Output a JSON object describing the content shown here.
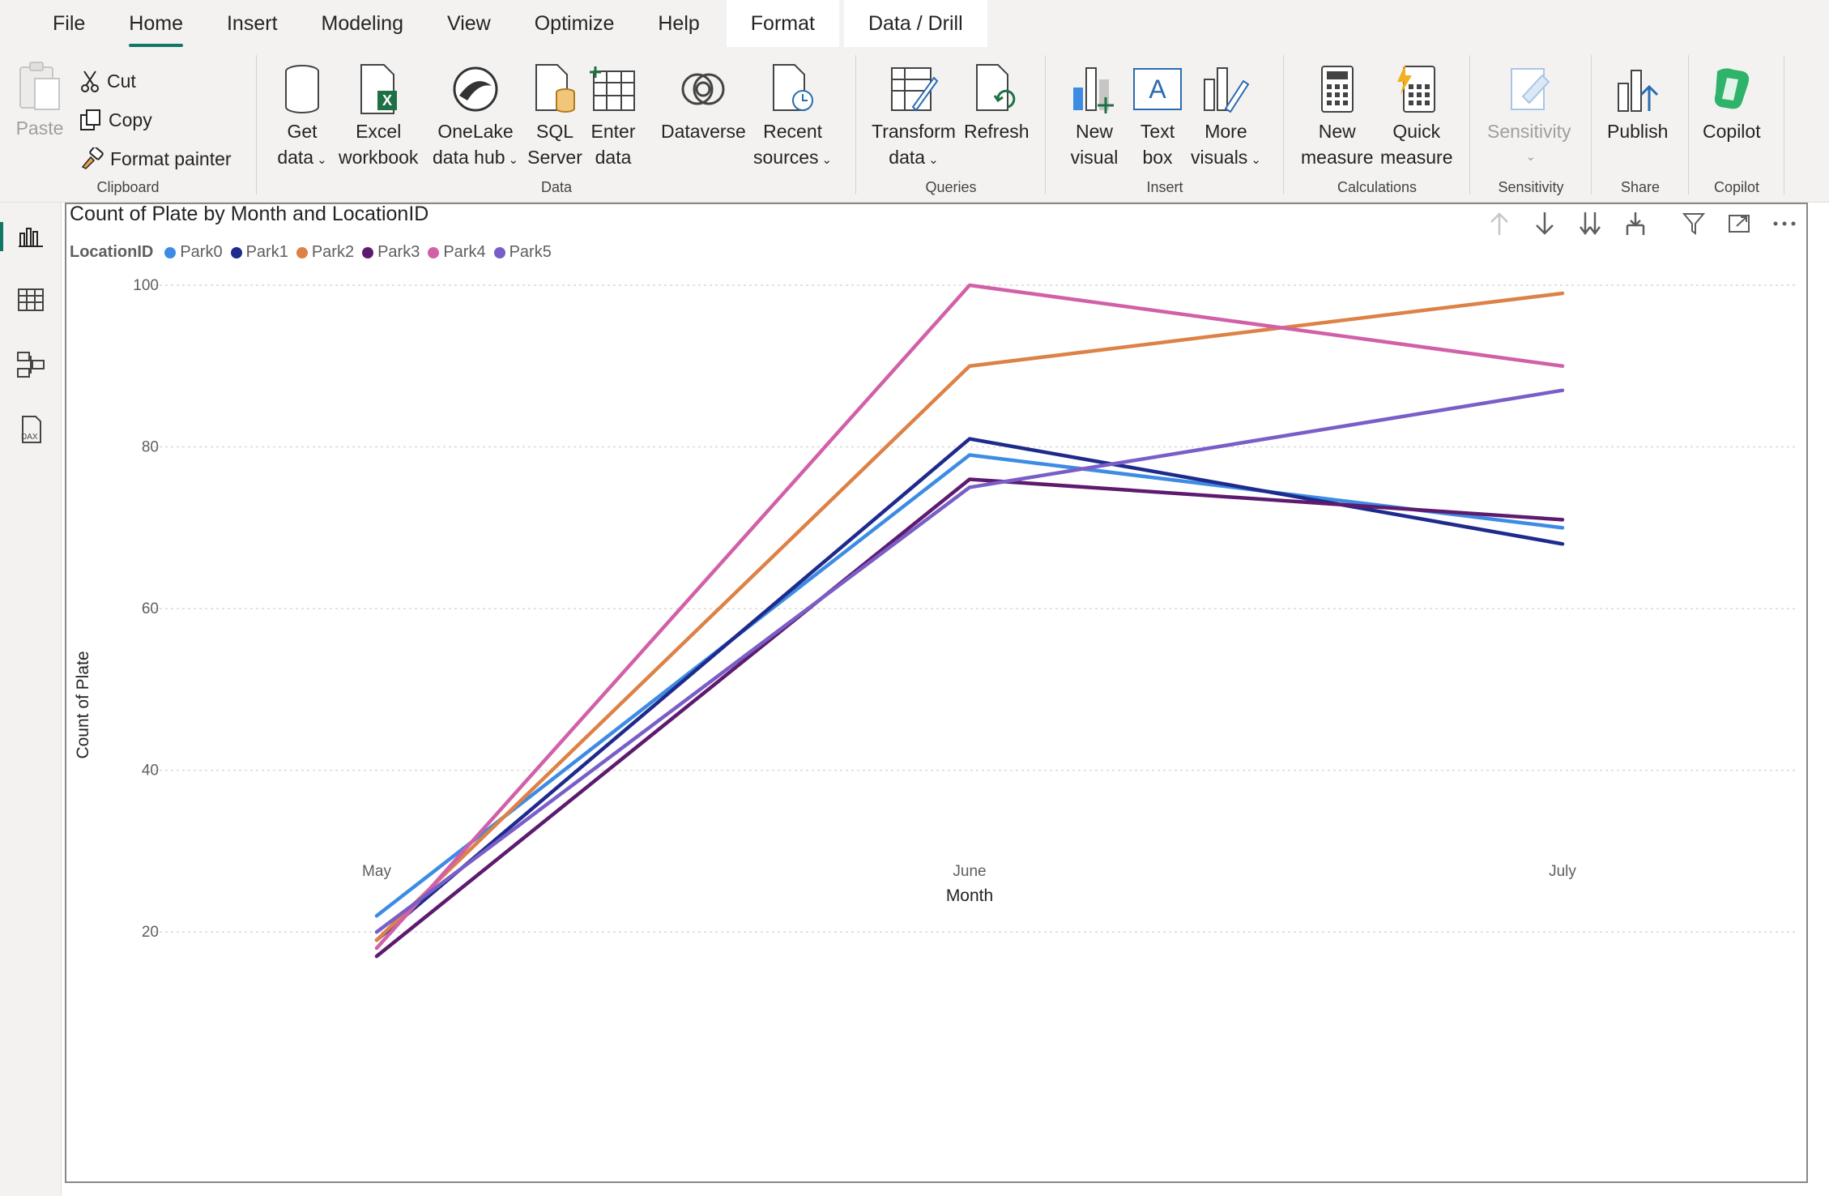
{
  "menu": {
    "tabs": [
      "File",
      "Home",
      "Insert",
      "Modeling",
      "View",
      "Optimize",
      "Help"
    ],
    "context_tabs": [
      "Format",
      "Data / Drill"
    ],
    "active": "Home"
  },
  "ribbon": {
    "clipboard": {
      "paste": "Paste",
      "cut": "Cut",
      "copy": "Copy",
      "format_painter": "Format painter",
      "label": "Clipboard"
    },
    "data": {
      "get_data": [
        "Get",
        "data"
      ],
      "excel": [
        "Excel",
        "workbook"
      ],
      "onelake": [
        "OneLake",
        "data hub"
      ],
      "sql": [
        "SQL",
        "Server"
      ],
      "enter": [
        "Enter",
        "data"
      ],
      "dataverse": "Dataverse",
      "recent": [
        "Recent",
        "sources"
      ],
      "label": "Data"
    },
    "queries": {
      "transform": [
        "Transform",
        "data"
      ],
      "refresh": "Refresh",
      "label": "Queries"
    },
    "insert": {
      "new_visual": [
        "New",
        "visual"
      ],
      "text_box": [
        "Text",
        "box"
      ],
      "more_visuals": [
        "More",
        "visuals"
      ],
      "label": "Insert"
    },
    "calculations": {
      "new_measure": [
        "New",
        "measure"
      ],
      "quick_measure": [
        "Quick",
        "measure"
      ],
      "label": "Calculations"
    },
    "sensitivity": {
      "sensitivity": "Sensitivity",
      "label": "Sensitivity"
    },
    "share": {
      "publish": "Publish",
      "label": "Share"
    },
    "copilot": {
      "copilot": "Copilot",
      "label": "Copilot"
    }
  },
  "visual": {
    "title": "Count of Plate by Month and LocationID",
    "legend_title": "LocationID"
  },
  "chart_data": {
    "type": "line",
    "title": "Count of Plate by Month and LocationID",
    "xlabel": "Month",
    "ylabel": "Count of Plate",
    "categories": [
      "May",
      "June",
      "July"
    ],
    "yticks": [
      20,
      40,
      60,
      80,
      100
    ],
    "ylim": [
      10,
      100
    ],
    "grid": true,
    "legend_position": "top-left",
    "series": [
      {
        "name": "Park0",
        "color": "#3d8ce3",
        "values": [
          22,
          79,
          70
        ]
      },
      {
        "name": "Park1",
        "color": "#1e2a8c",
        "values": [
          19,
          81,
          68
        ]
      },
      {
        "name": "Park2",
        "color": "#dd8246",
        "values": [
          19,
          90,
          99
        ]
      },
      {
        "name": "Park3",
        "color": "#5e1a6e",
        "values": [
          17,
          76,
          71
        ]
      },
      {
        "name": "Park4",
        "color": "#d160a8",
        "values": [
          18,
          100,
          90
        ]
      },
      {
        "name": "Park5",
        "color": "#7a5ec7",
        "values": [
          20,
          75,
          87
        ]
      }
    ]
  }
}
